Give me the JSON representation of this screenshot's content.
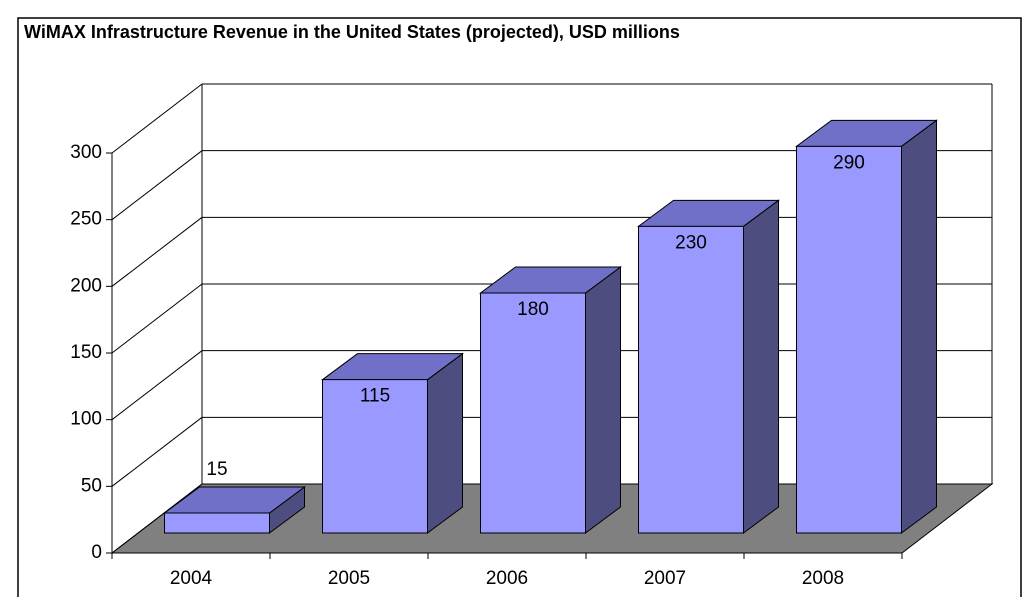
{
  "chart_data": {
    "type": "bar3d",
    "title": "WiMAX Infrastructure Revenue in the United States (projected), USD millions",
    "categories": [
      "2004",
      "2005",
      "2006",
      "2007",
      "2008"
    ],
    "values": [
      15,
      115,
      180,
      230,
      290
    ],
    "color": "#9999ff",
    "ylim": [
      0,
      300
    ],
    "yticks": [
      0,
      50,
      100,
      150,
      200,
      250,
      300
    ],
    "grid": true
  }
}
